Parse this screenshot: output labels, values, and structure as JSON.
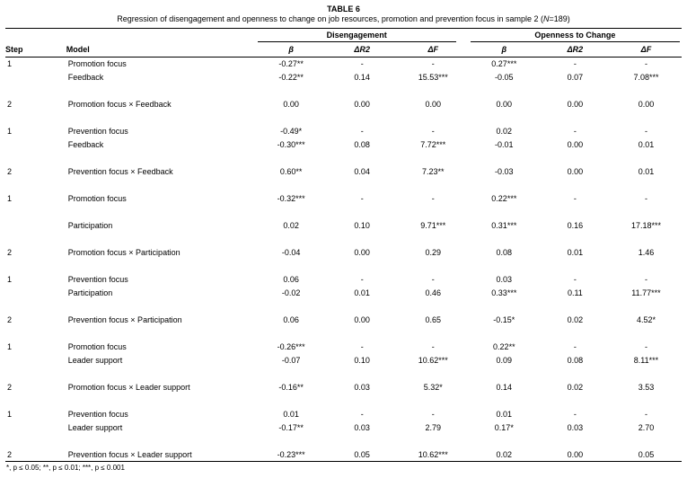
{
  "header": {
    "table_label": "TABLE 6",
    "caption": {
      "prefix": "Regression of disengagement and openness to change on job resources, promotion and prevention focus in sample 2 (",
      "n": "N",
      "suffix": "=189)"
    }
  },
  "table": {
    "group_headers": {
      "disengagement": "Disengagement",
      "openness": "Openness to Change"
    },
    "columns": {
      "step": "Step",
      "model": "Model",
      "beta": "β",
      "dr2": "ΔR2",
      "df": "ΔF"
    },
    "rows": [
      [
        "1",
        "Promotion focus",
        "-0.27**",
        "-",
        "-",
        "0.27***",
        "-",
        "-"
      ],
      [
        "",
        "Feedback",
        "-0.22**",
        "0.14",
        "15.53***",
        "-0.05",
        "0.07",
        "7.08***"
      ],
      null,
      [
        "2",
        "Promotion focus × Feedback",
        "0.00",
        "0.00",
        "0.00",
        "0.00",
        "0.00",
        "0.00"
      ],
      null,
      [
        "1",
        "Prevention focus",
        "-0.49*",
        "-",
        "-",
        "0.02",
        "-",
        "-"
      ],
      [
        "",
        "Feedback",
        "-0.30***",
        "0.08",
        "7.72***",
        "-0.01",
        "0.00",
        "0.01"
      ],
      null,
      [
        "2",
        "Prevention focus × Feedback",
        "0.60**",
        "0.04",
        "7.23**",
        "-0.03",
        "0.00",
        "0.01"
      ],
      null,
      [
        "1",
        "Promotion focus",
        "-0.32***",
        "-",
        "-",
        "0.22***",
        "-",
        "-"
      ],
      null,
      [
        "",
        "Participation",
        "0.02",
        "0.10",
        "9.71***",
        "0.31***",
        "0.16",
        "17.18***"
      ],
      null,
      [
        "2",
        "Promotion focus × Participation",
        "-0.04",
        "0.00",
        "0.29",
        "0.08",
        "0.01",
        "1.46"
      ],
      null,
      [
        "1",
        "Prevention focus",
        "0.06",
        "-",
        "-",
        "0.03",
        "-",
        "-"
      ],
      [
        "",
        "Participation",
        "-0.02",
        "0.01",
        "0.46",
        "0.33***",
        "0.11",
        "11.77***"
      ],
      null,
      [
        "2",
        "Prevention focus × Participation",
        "0.06",
        "0.00",
        "0.65",
        "-0.15*",
        "0.02",
        "4.52*"
      ],
      null,
      [
        "1",
        "Promotion focus",
        "-0.26***",
        "-",
        "-",
        "0.22**",
        "-",
        "-"
      ],
      [
        "",
        "Leader support",
        "-0.07",
        "0.10",
        "10.62***",
        "0.09",
        "0.08",
        "8.11***"
      ],
      null,
      [
        "2",
        "Promotion focus × Leader support",
        "-0.16**",
        "0.03",
        "5.32*",
        "0.14",
        "0.02",
        "3.53"
      ],
      null,
      [
        "1",
        "Prevention focus",
        "0.01",
        "-",
        "-",
        "0.01",
        "-",
        "-"
      ],
      [
        "",
        "Leader support",
        "-0.17**",
        "0.03",
        "2.79",
        "0.17*",
        "0.03",
        "2.70"
      ],
      null,
      [
        "2",
        "Prevention focus × Leader support",
        "-0.23***",
        "0.05",
        "10.62***",
        "0.02",
        "0.00",
        "0.05"
      ]
    ]
  },
  "footnote": "*, p ≤ 0.05; **, p ≤ 0.01; ***, p ≤ 0.001"
}
